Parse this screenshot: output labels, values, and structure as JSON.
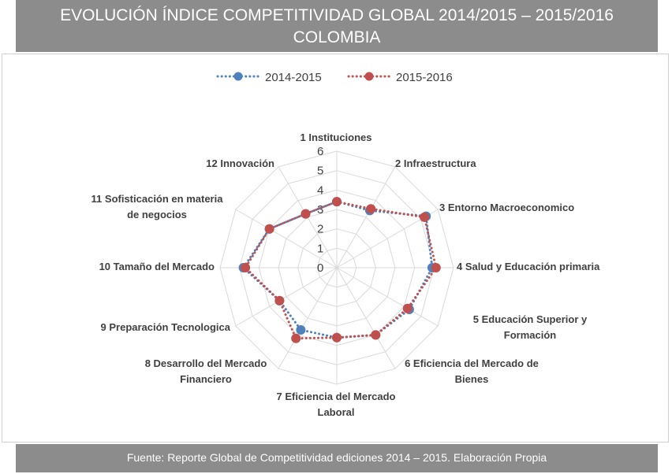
{
  "header": {
    "title_line1": "EVOLUCIÓN ÍNDICE COMPETITIVIDAD GLOBAL 2014/2015 – 2015/2016",
    "title_line2": "COLOMBIA"
  },
  "footer": {
    "text": "Fuente: Reporte Global de Competitividad ediciones 2014 – 2015. Elaboración Propia"
  },
  "colors": {
    "header_bg": "#8c8c8c",
    "series_2014": "#4f81bd",
    "series_2015": "#c0504d",
    "grid": "#d9d9d9"
  },
  "chart_data": {
    "type": "radar",
    "categories": [
      "1 Instituciones",
      "2 Infraestructura",
      "3 Entorno Macroeconomico",
      "4 Salud y Educación primaria",
      "5 Educación Superior y Formación",
      "6 Eficiencia del Mercado de Bienes",
      "7 Eficiencia del Mercado Laboral",
      "8 Desarrollo del Mercado Financiero",
      "9 Preparación Tecnologica",
      "10 Tamaño del Mercado",
      "11 Sofisticación en materia de negocios",
      "12 Innovación"
    ],
    "series": [
      {
        "name": "2014-2015",
        "values": [
          3.4,
          3.4,
          5.3,
          4.9,
          4.3,
          4.0,
          3.6,
          3.7,
          3.4,
          4.8,
          4.0,
          3.2
        ]
      },
      {
        "name": "2015-2016",
        "values": [
          3.4,
          3.5,
          5.2,
          5.1,
          4.2,
          4.0,
          3.6,
          4.2,
          3.4,
          4.7,
          4.0,
          3.2
        ]
      }
    ],
    "ylim": [
      0,
      6
    ],
    "ticks": [
      "0",
      "1",
      "2",
      "3",
      "4",
      "5",
      "6"
    ],
    "legend": "top"
  }
}
